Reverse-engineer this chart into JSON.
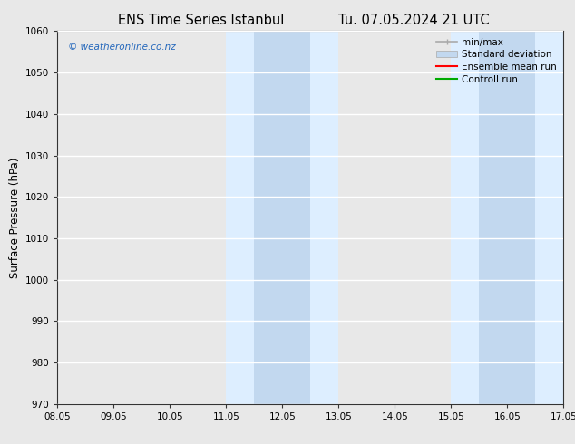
{
  "title_left": "ENS Time Series Istanbul",
  "title_right": "Tu. 07.05.2024 21 UTC",
  "ylabel": "Surface Pressure (hPa)",
  "ylim": [
    970,
    1060
  ],
  "yticks": [
    970,
    980,
    990,
    1000,
    1010,
    1020,
    1030,
    1040,
    1050,
    1060
  ],
  "xtick_labels": [
    "08.05",
    "09.05",
    "10.05",
    "11.05",
    "12.05",
    "13.05",
    "14.05",
    "15.05",
    "16.05",
    "17.05"
  ],
  "xlim": [
    0.0,
    9.0
  ],
  "shaded_outer": [
    {
      "xmin": 3.0,
      "xmax": 5.0,
      "color": "#ddeeff"
    },
    {
      "xmin": 7.0,
      "xmax": 9.0,
      "color": "#ddeeff"
    }
  ],
  "shaded_inner": [
    {
      "xmin": 3.5,
      "xmax": 4.5,
      "color": "#c2d8ef"
    },
    {
      "xmin": 7.5,
      "xmax": 8.5,
      "color": "#c2d8ef"
    }
  ],
  "watermark": "© weatheronline.co.nz",
  "watermark_color": "#2266bb",
  "bg_color": "#e8e8e8",
  "plot_bg_color": "#e8e8e8",
  "grid_color": "#ffffff",
  "grid_lw": 1.0,
  "tick_label_fontsize": 7.5,
  "ylabel_fontsize": 8.5,
  "title_fontsize": 10.5,
  "legend_fontsize": 7.5,
  "minmax_color": "#aaaaaa",
  "std_color": "#c2d8ef",
  "ensemble_color": "#ff0000",
  "control_color": "#00aa00"
}
